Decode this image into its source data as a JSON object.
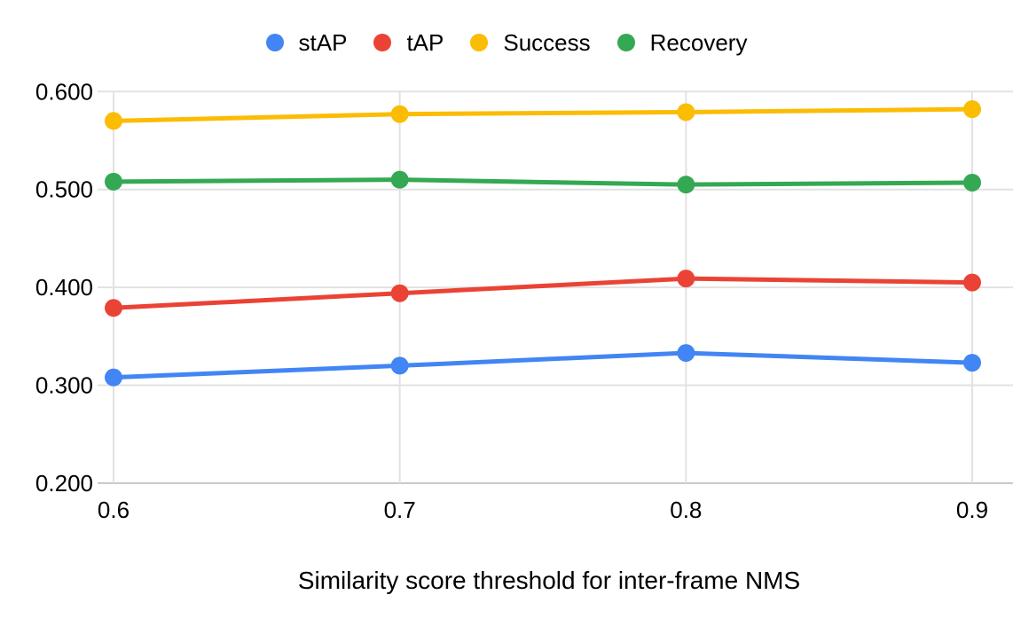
{
  "chart_data": {
    "type": "line",
    "title": "",
    "xlabel": "Similarity score threshold for inter-frame NMS",
    "ylabel": "",
    "x": [
      0.6,
      0.7,
      0.8,
      0.9
    ],
    "x_tick_labels": [
      "0.6",
      "0.7",
      "0.8",
      "0.9"
    ],
    "y_ticks": [
      0.6,
      0.5,
      0.4,
      0.3,
      0.2
    ],
    "y_tick_labels": [
      "0.600",
      "0.500",
      "0.400",
      "0.300",
      "0.200"
    ],
    "ylim": [
      0.2,
      0.6
    ],
    "xlim": [
      0.6,
      0.9
    ],
    "grid": true,
    "legend_position": "top",
    "series": [
      {
        "name": "stAP",
        "color": "#4285F4",
        "values": [
          0.308,
          0.32,
          0.333,
          0.323
        ]
      },
      {
        "name": "tAP",
        "color": "#EA4335",
        "values": [
          0.379,
          0.394,
          0.409,
          0.405
        ]
      },
      {
        "name": "Success",
        "color": "#FBBC04",
        "values": [
          0.57,
          0.577,
          0.579,
          0.582
        ]
      },
      {
        "name": "Recovery",
        "color": "#34A853",
        "values": [
          0.508,
          0.51,
          0.505,
          0.507
        ]
      }
    ],
    "style": {
      "background": "#ffffff",
      "grid_color": "#e2e2e2",
      "axis_line_color": "#c6c6c6",
      "text_color": "#000000",
      "line_width": 5,
      "point_radius": 10
    }
  }
}
